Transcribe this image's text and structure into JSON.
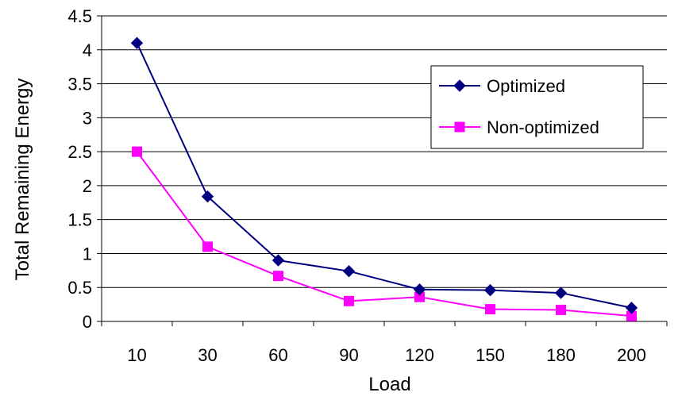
{
  "chart_data": {
    "type": "line",
    "title": "",
    "xlabel": "Load",
    "ylabel": "Total Remaining Energy",
    "categories": [
      "10",
      "30",
      "60",
      "90",
      "120",
      "150",
      "180",
      "200"
    ],
    "ylim": [
      0,
      4.5
    ],
    "yticks": [
      "0",
      "0.5",
      "1",
      "1.5",
      "2",
      "2.5",
      "3",
      "3.5",
      "4",
      "4.5"
    ],
    "grid": "horizontal",
    "legend_position": "right",
    "series": [
      {
        "name": "Optimized",
        "values": [
          4.1,
          1.84,
          0.9,
          0.74,
          0.47,
          0.46,
          0.42,
          0.2
        ],
        "color": "#000080",
        "marker": "diamond"
      },
      {
        "name": "Non-optimized",
        "values": [
          2.5,
          1.1,
          0.67,
          0.3,
          0.36,
          0.18,
          0.17,
          0.08
        ],
        "color": "#ff00ff",
        "marker": "square"
      }
    ]
  }
}
